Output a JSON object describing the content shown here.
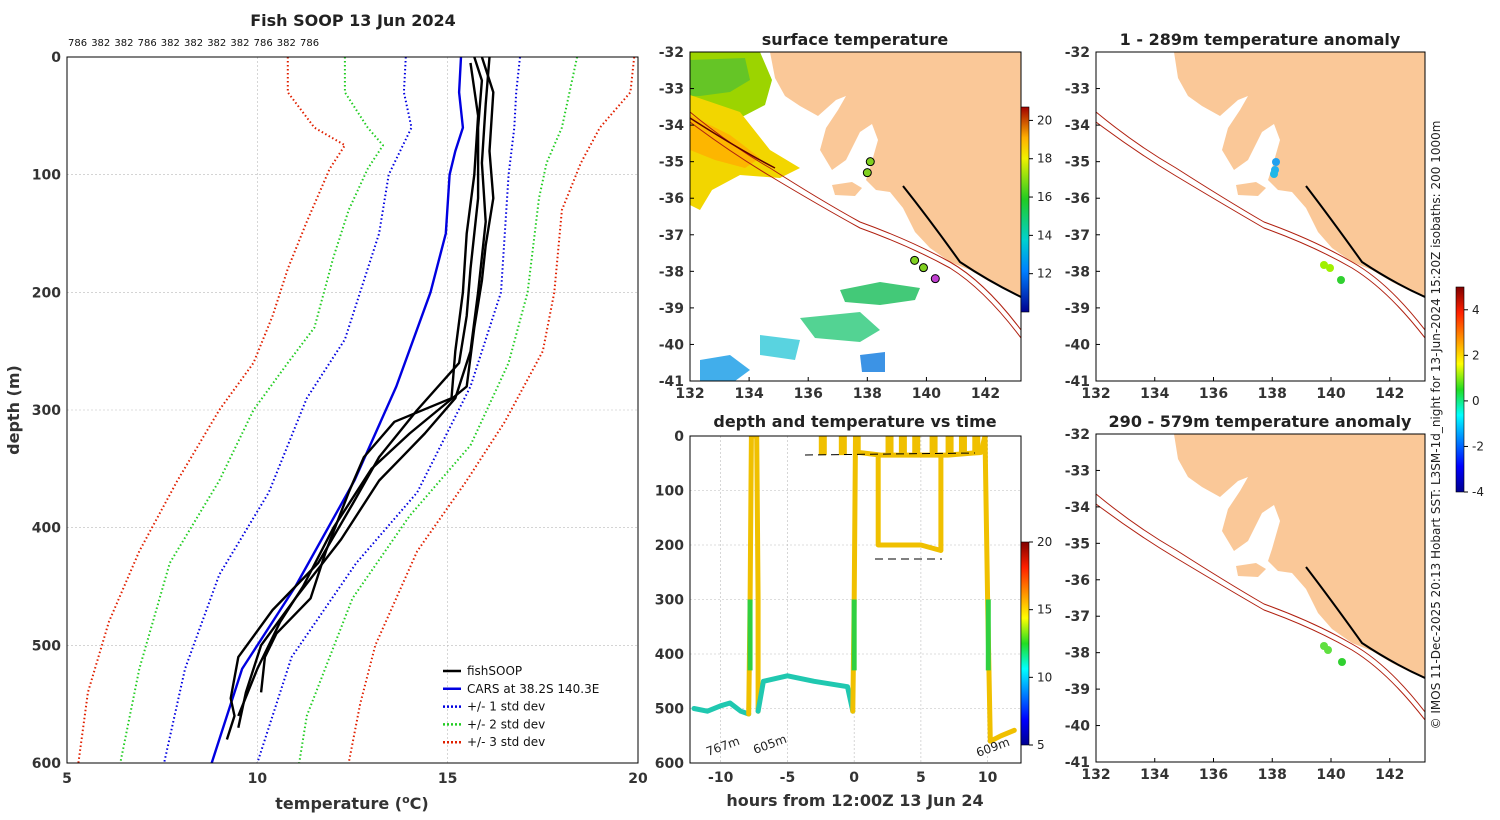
{
  "credit": "© IMOS 11-Dec-2025 20:13 Hobart SST: L3SM-1d_night for 13-Jun-2024 15:20Z isobaths: 200  1000m",
  "chart_data": [
    {
      "type": "line",
      "title": "Fish SOOP 13 Jun 2024",
      "top_labels": [
        "786",
        "382",
        "382",
        "786",
        "382",
        "382",
        "382",
        "382",
        "786",
        "382",
        "786"
      ],
      "xlabel": "temperature (",
      "xlabel_sup": "o",
      "xlabel_end": "C)",
      "ylabel": "depth (m)",
      "xlim": [
        5,
        20
      ],
      "ylim": [
        600,
        0
      ],
      "xticks": [
        "5",
        "10",
        "15",
        "20"
      ],
      "yticks": [
        "0",
        "100",
        "200",
        "300",
        "400",
        "500",
        "600"
      ],
      "legend": [
        {
          "label": "fishSOOP",
          "color": "#000000",
          "style": "solid"
        },
        {
          "label": "CARS at 38.2S 140.3E",
          "color": "#0000e0",
          "style": "solid"
        },
        {
          "label": "+/- 1 std dev",
          "color": "#0000e0",
          "style": "dotted"
        },
        {
          "label": "+/- 2 std dev",
          "color": "#22cc22",
          "style": "dotted"
        },
        {
          "label": "+/- 3 std dev",
          "color": "#e02000",
          "style": "dotted"
        }
      ],
      "series": [
        {
          "name": "CARS",
          "color": "#0000e0",
          "dash": "",
          "pts": [
            [
              15.35,
              0
            ],
            [
              15.3,
              30
            ],
            [
              15.4,
              60
            ],
            [
              15.2,
              80
            ],
            [
              15.05,
              100
            ],
            [
              14.95,
              150
            ],
            [
              14.55,
              200
            ],
            [
              13.65,
              280
            ],
            [
              12.55,
              360
            ],
            [
              11.0,
              450
            ],
            [
              9.6,
              520
            ],
            [
              8.8,
              600
            ]
          ]
        },
        {
          "name": "+1sd",
          "color": "#0000e0",
          "dash": "1.5,2.5",
          "pts": [
            [
              16.9,
              0
            ],
            [
              16.8,
              30
            ],
            [
              16.75,
              60
            ],
            [
              16.6,
              100
            ],
            [
              16.4,
              200
            ],
            [
              15.6,
              280
            ],
            [
              14.2,
              370
            ],
            [
              12.6,
              430
            ],
            [
              10.9,
              510
            ],
            [
              10.0,
              600
            ]
          ]
        },
        {
          "name": "-1sd",
          "color": "#0000e0",
          "dash": "1.5,2.5",
          "pts": [
            [
              13.9,
              0
            ],
            [
              13.85,
              30
            ],
            [
              14.05,
              60
            ],
            [
              13.75,
              80
            ],
            [
              13.45,
              100
            ],
            [
              13.2,
              150
            ],
            [
              12.3,
              240
            ],
            [
              11.3,
              290
            ],
            [
              10.3,
              370
            ],
            [
              9.0,
              440
            ],
            [
              8.1,
              520
            ],
            [
              7.55,
              600
            ]
          ]
        },
        {
          "name": "+2sd",
          "color": "#22cc22",
          "dash": "1.5,2.5",
          "pts": [
            [
              18.4,
              0
            ],
            [
              18.2,
              30
            ],
            [
              18.0,
              60
            ],
            [
              17.6,
              90
            ],
            [
              17.4,
              120
            ],
            [
              17.1,
              200
            ],
            [
              16.6,
              260
            ],
            [
              15.6,
              330
            ],
            [
              14.0,
              390
            ],
            [
              12.5,
              460
            ],
            [
              11.3,
              560
            ],
            [
              11.1,
              600
            ]
          ]
        },
        {
          "name": "-2sd",
          "color": "#22cc22",
          "dash": "1.5,2.5",
          "pts": [
            [
              12.3,
              0
            ],
            [
              12.3,
              30
            ],
            [
              12.9,
              60
            ],
            [
              13.3,
              75
            ],
            [
              12.9,
              95
            ],
            [
              12.4,
              130
            ],
            [
              12.0,
              170
            ],
            [
              11.5,
              230
            ],
            [
              10.8,
              260
            ],
            [
              9.9,
              300
            ],
            [
              9.0,
              360
            ],
            [
              7.7,
              430
            ],
            [
              6.9,
              520
            ],
            [
              6.4,
              600
            ]
          ]
        },
        {
          "name": "+3sd",
          "color": "#e02000",
          "dash": "1.5,2.5",
          "pts": [
            [
              19.9,
              0
            ],
            [
              19.8,
              30
            ],
            [
              19.0,
              60
            ],
            [
              18.5,
              90
            ],
            [
              18.0,
              130
            ],
            [
              17.8,
              200
            ],
            [
              17.5,
              250
            ],
            [
              16.5,
              310
            ],
            [
              15.5,
              360
            ],
            [
              14.2,
              420
            ],
            [
              13.1,
              500
            ],
            [
              12.7,
              550
            ],
            [
              12.4,
              600
            ]
          ]
        },
        {
          "name": "-3sd",
          "color": "#e02000",
          "dash": "1.5,2.5",
          "pts": [
            [
              10.8,
              0
            ],
            [
              10.8,
              30
            ],
            [
              11.5,
              60
            ],
            [
              12.3,
              75
            ],
            [
              11.9,
              95
            ],
            [
              11.3,
              140
            ],
            [
              10.8,
              180
            ],
            [
              10.4,
              220
            ],
            [
              9.9,
              260
            ],
            [
              9.0,
              300
            ],
            [
              7.9,
              360
            ],
            [
              6.9,
              420
            ],
            [
              6.1,
              480
            ],
            [
              5.55,
              540
            ],
            [
              5.3,
              600
            ]
          ]
        },
        {
          "name": "fishSOOP-1",
          "color": "#000000",
          "dash": "",
          "pts": [
            [
              15.7,
              0
            ],
            [
              15.9,
              20
            ],
            [
              15.8,
              60
            ],
            [
              15.8,
              120
            ],
            [
              15.6,
              180
            ],
            [
              15.5,
              220
            ],
            [
              15.3,
              260
            ],
            [
              14.2,
              300
            ],
            [
              13.2,
              340
            ],
            [
              12.5,
              380
            ],
            [
              11.6,
              430
            ],
            [
              10.4,
              470
            ],
            [
              9.5,
              510
            ],
            [
              9.3,
              545
            ],
            [
              9.4,
              560
            ],
            [
              9.2,
              580
            ]
          ]
        },
        {
          "name": "fishSOOP-2",
          "color": "#000000",
          "dash": "",
          "pts": [
            [
              15.9,
              0
            ],
            [
              16.2,
              30
            ],
            [
              16.1,
              80
            ],
            [
              16.2,
              120
            ],
            [
              16.0,
              160
            ],
            [
              15.9,
              190
            ],
            [
              15.7,
              230
            ],
            [
              15.5,
              280
            ],
            [
              14.0,
              320
            ],
            [
              13.0,
              350
            ],
            [
              12.0,
              400
            ],
            [
              11.2,
              450
            ],
            [
              10.6,
              480
            ],
            [
              10.0,
              520
            ],
            [
              9.5,
              560
            ]
          ]
        },
        {
          "name": "fishSOOP-3",
          "color": "#000000",
          "dash": "",
          "pts": [
            [
              16.1,
              0
            ],
            [
              16.0,
              40
            ],
            [
              15.9,
              90
            ],
            [
              16.0,
              140
            ],
            [
              15.8,
              200
            ],
            [
              15.6,
              250
            ],
            [
              15.2,
              290
            ],
            [
              14.4,
              320
            ],
            [
              13.8,
              340
            ],
            [
              13.2,
              360
            ],
            [
              12.2,
              410
            ],
            [
              11.0,
              460
            ],
            [
              10.1,
              500
            ],
            [
              9.7,
              540
            ],
            [
              9.5,
              570
            ]
          ]
        },
        {
          "name": "fishSOOP-4",
          "color": "#000000",
          "dash": "",
          "pts": [
            [
              15.6,
              5
            ],
            [
              15.8,
              50
            ],
            [
              15.7,
              100
            ],
            [
              15.5,
              150
            ],
            [
              15.4,
              200
            ],
            [
              15.2,
              250
            ],
            [
              15.1,
              290
            ],
            [
              13.6,
              310
            ],
            [
              12.8,
              340
            ],
            [
              12.4,
              370
            ],
            [
              11.8,
              420
            ],
            [
              11.4,
              460
            ],
            [
              10.5,
              490
            ],
            [
              10.2,
              510
            ],
            [
              10.1,
              540
            ]
          ]
        }
      ]
    },
    {
      "type": "heatmap",
      "title": "surface temperature",
      "xticks": [
        "132",
        "134",
        "136",
        "138",
        "140",
        "142"
      ],
      "yticks": [
        "-32",
        "-33",
        "-34",
        "-35",
        "-36",
        "-37",
        "-38",
        "-39",
        "-40",
        "-41"
      ],
      "xlim": [
        132,
        143.2
      ],
      "ylim": [
        -41,
        -32
      ],
      "colorbar": {
        "min": 10,
        "max": 20.7,
        "ticks": [
          "12",
          "14",
          "16",
          "18",
          "20"
        ]
      },
      "stations": [
        [
          138.1,
          -35.0
        ],
        [
          138.0,
          -35.3
        ],
        [
          139.6,
          -37.7
        ],
        [
          139.9,
          -37.9
        ],
        [
          140.3,
          -38.2
        ]
      ]
    },
    {
      "type": "scatter",
      "title": "depth and temperature vs time",
      "xlabel": "hours from 12:00Z 13 Jun 24",
      "xticks": [
        "-10",
        "-5",
        "0",
        "5",
        "10"
      ],
      "yticks": [
        "0",
        "100",
        "200",
        "300",
        "400",
        "500",
        "600"
      ],
      "xlim": [
        -12.3,
        12.5
      ],
      "ylim": [
        600,
        0
      ],
      "colorbar": {
        "min": 5,
        "max": 20,
        "ticks": [
          "5",
          "10",
          "15",
          "20"
        ]
      },
      "annotations": [
        "767m",
        "605m",
        "609m"
      ]
    },
    {
      "type": "scatter",
      "title": "1 - 289m temperature anomaly",
      "xticks": [
        "132",
        "134",
        "136",
        "138",
        "140",
        "142"
      ],
      "yticks": [
        "-32",
        "-33",
        "-34",
        "-35",
        "-36",
        "-37",
        "-38",
        "-39",
        "-40",
        "-41"
      ],
      "xlim": [
        132,
        143.2
      ],
      "ylim": [
        -41,
        -32
      ],
      "colorbar": {
        "min": -4,
        "max": 5,
        "ticks": [
          "-4",
          "-2",
          "0",
          "2",
          "4"
        ]
      }
    },
    {
      "type": "scatter",
      "title": "290 - 579m temperature anomaly",
      "xticks": [
        "132",
        "134",
        "136",
        "138",
        "140",
        "142"
      ],
      "yticks": [
        "-32",
        "-33",
        "-34",
        "-35",
        "-36",
        "-37",
        "-38",
        "-39",
        "-40",
        "-41"
      ],
      "xlim": [
        132,
        143.2
      ],
      "ylim": [
        -41,
        -32
      ]
    }
  ]
}
